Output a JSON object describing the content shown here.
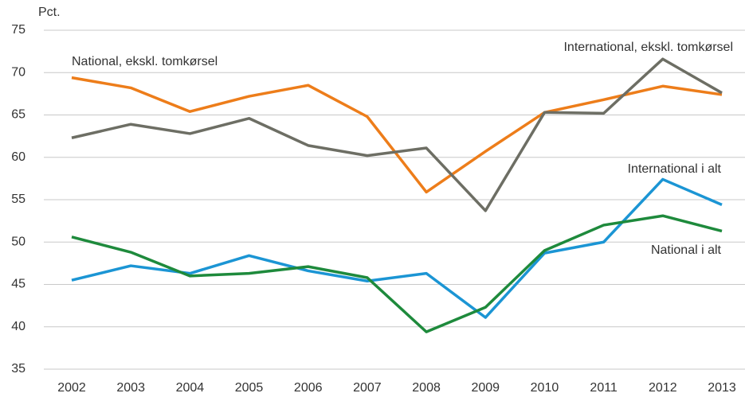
{
  "chart_data": {
    "type": "line",
    "y_label": "Pct.",
    "x": [
      "2002",
      "2003",
      "2004",
      "2005",
      "2006",
      "2007",
      "2008",
      "2009",
      "2010",
      "2011",
      "2012",
      "2013"
    ],
    "series": [
      {
        "name": "National, ekskl. tomkørsel",
        "color": "#ed7d1a",
        "values": [
          69.4,
          68.2,
          65.4,
          67.2,
          68.5,
          64.8,
          55.9,
          60.7,
          65.3,
          66.8,
          68.4,
          67.4
        ]
      },
      {
        "name": "International, ekskl. tomkørsel",
        "color": "#6d6e64",
        "values": [
          62.3,
          63.9,
          62.8,
          64.6,
          61.4,
          60.2,
          61.1,
          53.7,
          65.3,
          65.2,
          71.6,
          67.6
        ]
      },
      {
        "name": "International i  alt",
        "color": "#1b95d4",
        "values": [
          45.5,
          47.2,
          46.3,
          48.4,
          46.6,
          45.4,
          46.3,
          41.1,
          48.7,
          50.0,
          57.4,
          54.4
        ]
      },
      {
        "name": "National i alt",
        "color": "#1e8a3c",
        "values": [
          50.6,
          48.8,
          46.0,
          46.3,
          47.1,
          45.8,
          39.4,
          42.3,
          49.0,
          52.0,
          53.1,
          51.3
        ]
      }
    ],
    "ylim": [
      35,
      75
    ],
    "yticks": [
      35,
      40,
      45,
      50,
      55,
      60,
      65,
      70,
      75
    ],
    "grid": true
  }
}
